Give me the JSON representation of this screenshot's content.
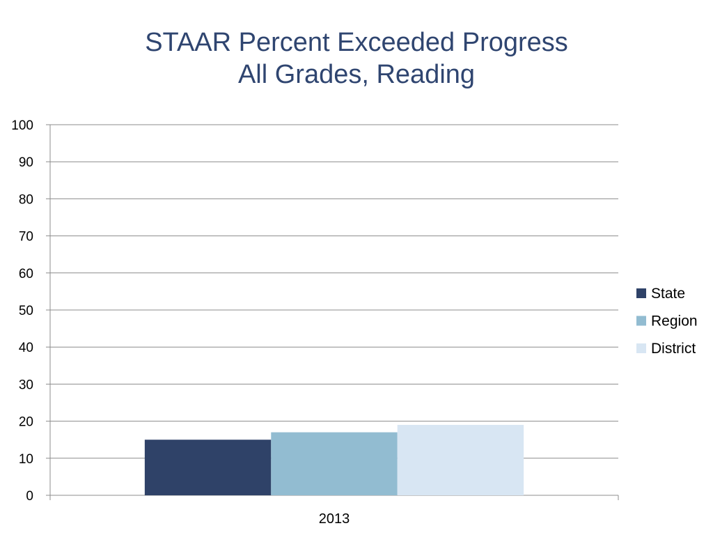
{
  "chart_data": {
    "type": "bar",
    "title": [
      "STAAR Percent Exceeded Progress",
      "All Grades, Reading"
    ],
    "categories": [
      "2013"
    ],
    "series": [
      {
        "name": "State",
        "values": [
          15
        ],
        "color": "#2f4268"
      },
      {
        "name": "Region",
        "values": [
          17
        ],
        "color": "#92bcd1"
      },
      {
        "name": "District",
        "values": [
          19
        ],
        "color": "#d8e6f3"
      }
    ],
    "ylim": [
      0,
      100
    ],
    "yticks": [
      0,
      10,
      20,
      30,
      40,
      50,
      60,
      70,
      80,
      90,
      100
    ],
    "grid": true,
    "legend": "right"
  }
}
